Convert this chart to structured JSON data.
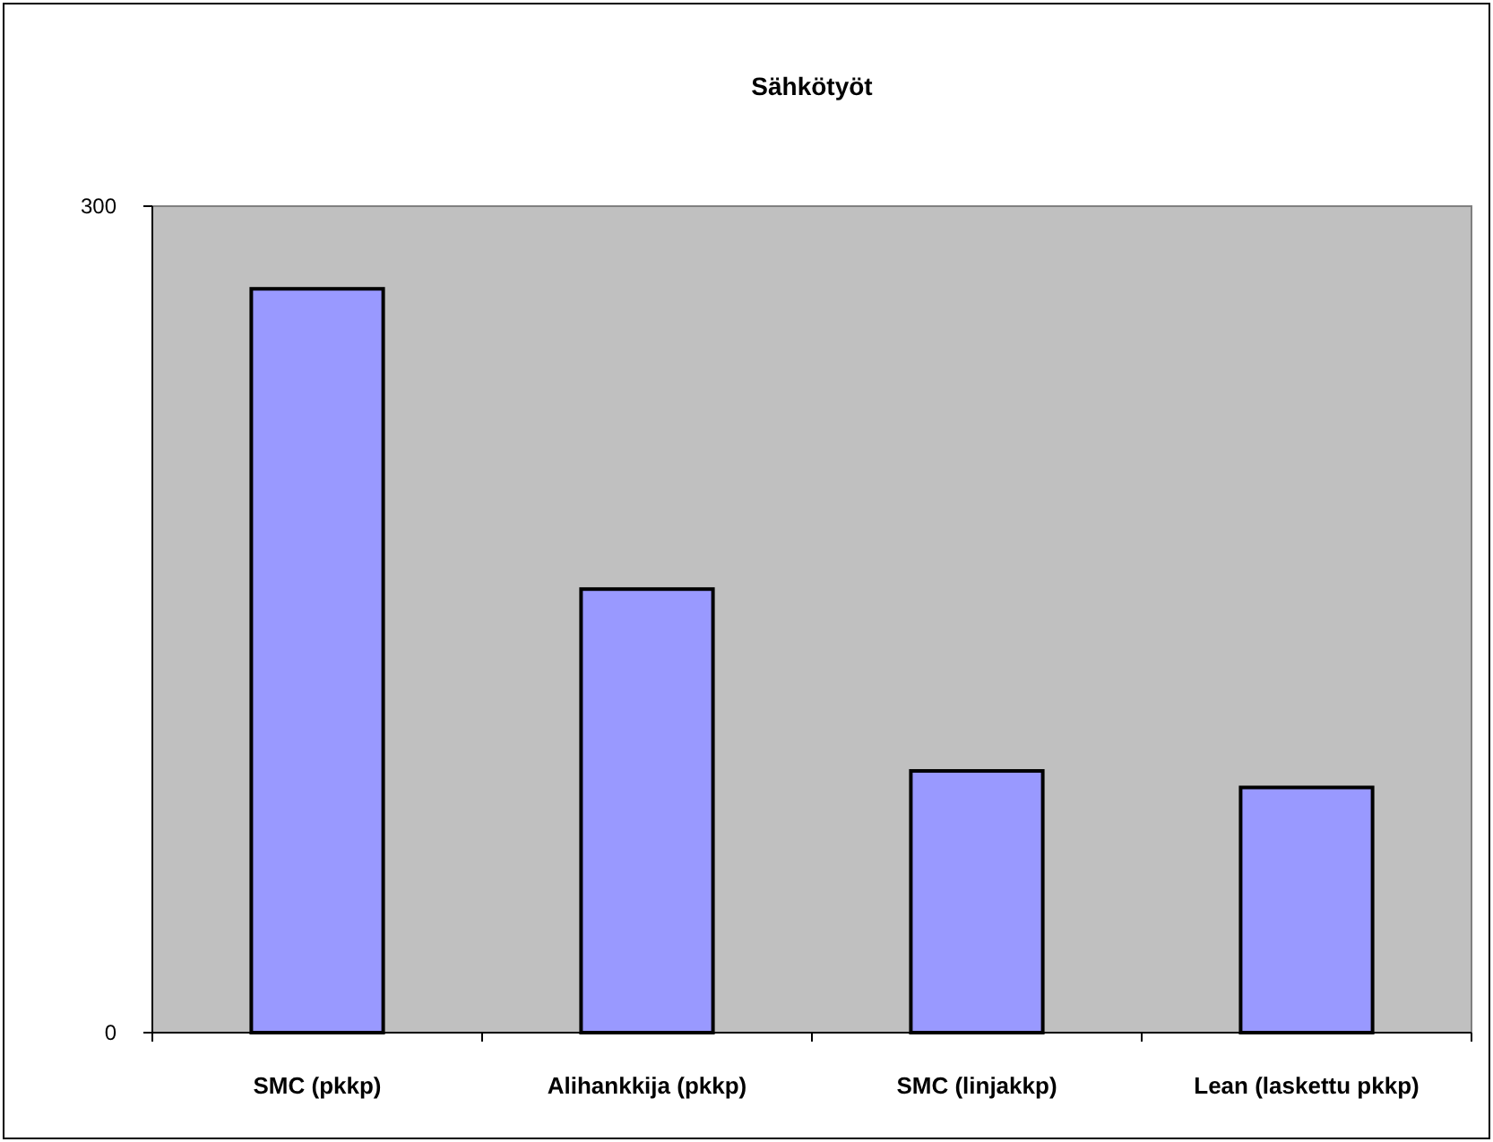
{
  "chart_data": {
    "type": "bar",
    "title": "Sähkötyöt",
    "categories": [
      "SMC (pkkp)",
      "Alihankkija (pkkp)",
      "SMC (linjakkp)",
      "Lean (laskettu pkkp)"
    ],
    "values": [
      270,
      161,
      95,
      89
    ],
    "color": "#9999ff",
    "ylim": [
      0,
      300
    ],
    "yticks": [
      0,
      300
    ],
    "grid": false
  }
}
